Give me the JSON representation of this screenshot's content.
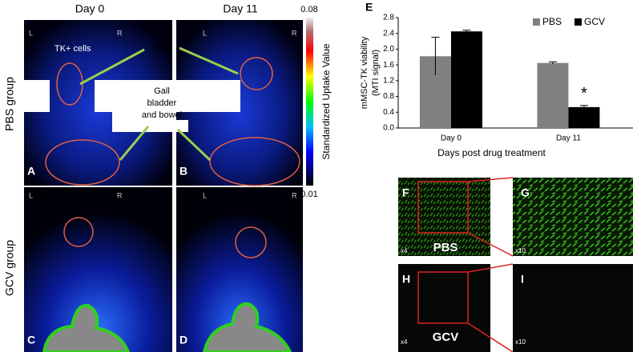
{
  "imaging": {
    "columns": [
      "Day 0",
      "Day 11"
    ],
    "rows": [
      "PBS group",
      "GCV group"
    ],
    "panel_letters": [
      "A",
      "B",
      "C",
      "D"
    ],
    "orientation": [
      "L",
      "R"
    ],
    "labels": {
      "cells": "TK+ cells",
      "head": "Head",
      "gall": [
        "Gall",
        "bladder",
        "and bowel"
      ]
    },
    "colorbar": {
      "title": "Standardized Uptake Value",
      "max": 0.08,
      "min": 0.01
    }
  },
  "microscopy": {
    "panel_letters": [
      "F",
      "G",
      "H",
      "I"
    ],
    "magnifications": [
      "x4",
      "x10"
    ],
    "groups": [
      "PBS",
      "GCV"
    ]
  },
  "chart_data": {
    "type": "bar",
    "panel_letter": "E",
    "categories": [
      "Day 0",
      "Day 11"
    ],
    "series": [
      {
        "name": "PBS",
        "color": "#808080",
        "values": [
          1.82,
          1.65
        ],
        "errors": [
          0.48,
          0.03
        ]
      },
      {
        "name": "GCV",
        "color": "#000000",
        "values": [
          2.45,
          0.53
        ],
        "errors": [
          0.03,
          0.04
        ]
      }
    ],
    "ylim": [
      0,
      2.8
    ],
    "yticks": [
      {
        "value": 0,
        "label": "0.0"
      },
      0.4,
      0.8,
      1.2,
      1.6,
      {
        "value": 2,
        "label": "2.0"
      },
      2.4,
      2.8
    ],
    "ylabel_lines": [
      "mMSC-TK viability",
      "(MTI signal)"
    ],
    "xlabel": "Days post drug treatment",
    "annotation": "*",
    "legend": "top-right"
  }
}
